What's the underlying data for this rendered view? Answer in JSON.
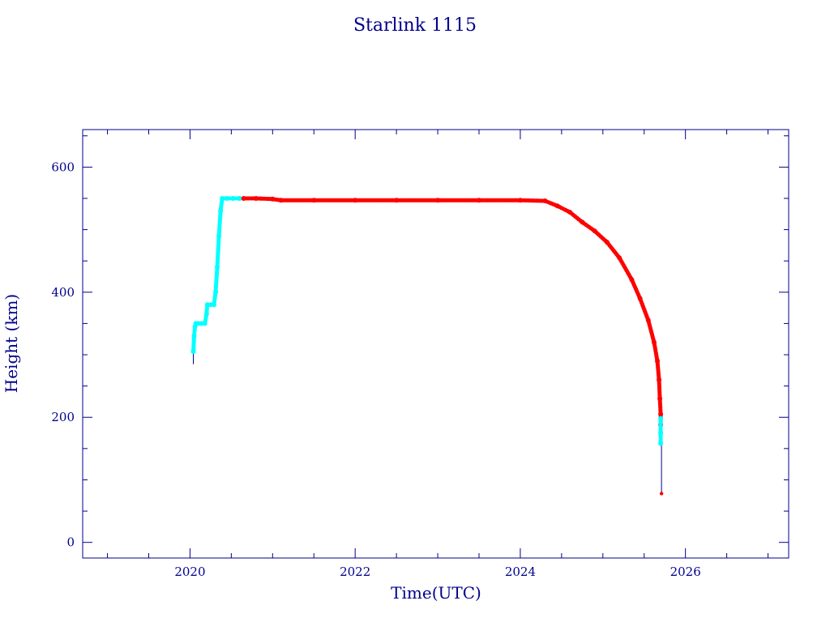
{
  "chart_data": {
    "type": "scatter",
    "title": "Starlink 1115",
    "xlabel": "Time(UTC)",
    "ylabel": "Height (km)",
    "xlim": [
      2018.7,
      2027.25
    ],
    "ylim": [
      -25,
      660
    ],
    "x_ticks": [
      2020,
      2022,
      2024,
      2026
    ],
    "x_tick_labels": [
      "2020",
      "2022",
      "2024",
      "2026"
    ],
    "y_ticks": [
      0,
      200,
      400,
      600
    ],
    "y_tick_labels": [
      "0",
      "200",
      "400",
      "600"
    ],
    "grid": false,
    "colors": {
      "frame": "#00008b",
      "text": "#00008b",
      "connector": "#00008b",
      "raising_phase": "#00ffff",
      "operational_phase": "#ff0000"
    },
    "series": [
      {
        "color": "#00ffff",
        "points": [
          [
            2020.04,
            305
          ],
          [
            2020.05,
            330
          ],
          [
            2020.06,
            345
          ],
          [
            2020.07,
            350
          ],
          [
            2020.1,
            350
          ],
          [
            2020.14,
            350
          ],
          [
            2020.18,
            350
          ],
          [
            2020.2,
            365
          ],
          [
            2020.21,
            380
          ],
          [
            2020.25,
            380
          ],
          [
            2020.29,
            380
          ],
          [
            2020.31,
            400
          ],
          [
            2020.33,
            440
          ],
          [
            2020.35,
            490
          ],
          [
            2020.37,
            530
          ],
          [
            2020.39,
            550
          ],
          [
            2020.45,
            550
          ],
          [
            2020.52,
            550
          ],
          [
            2020.6,
            550
          ]
        ]
      },
      {
        "color": "#ff0000",
        "points": [
          [
            2020.65,
            550
          ],
          [
            2020.8,
            550
          ],
          [
            2021.0,
            549
          ],
          [
            2021.1,
            547
          ],
          [
            2021.5,
            547
          ],
          [
            2022.0,
            547
          ],
          [
            2022.5,
            547
          ],
          [
            2023.0,
            547
          ],
          [
            2023.5,
            547
          ],
          [
            2024.0,
            547
          ],
          [
            2024.3,
            546
          ],
          [
            2024.45,
            538
          ],
          [
            2024.6,
            528
          ],
          [
            2024.75,
            512
          ],
          [
            2024.9,
            498
          ],
          [
            2025.05,
            480
          ],
          [
            2025.2,
            455
          ],
          [
            2025.35,
            420
          ],
          [
            2025.45,
            390
          ],
          [
            2025.55,
            355
          ],
          [
            2025.62,
            320
          ],
          [
            2025.66,
            290
          ],
          [
            2025.68,
            260
          ],
          [
            2025.69,
            230
          ],
          [
            2025.7,
            205
          ],
          [
            2025.7,
            188
          ],
          [
            2025.71,
            78
          ]
        ]
      },
      {
        "color": "#00ffff",
        "points": [
          [
            2025.7,
            198
          ],
          [
            2025.7,
            175
          ],
          [
            2025.7,
            158
          ]
        ]
      }
    ]
  }
}
